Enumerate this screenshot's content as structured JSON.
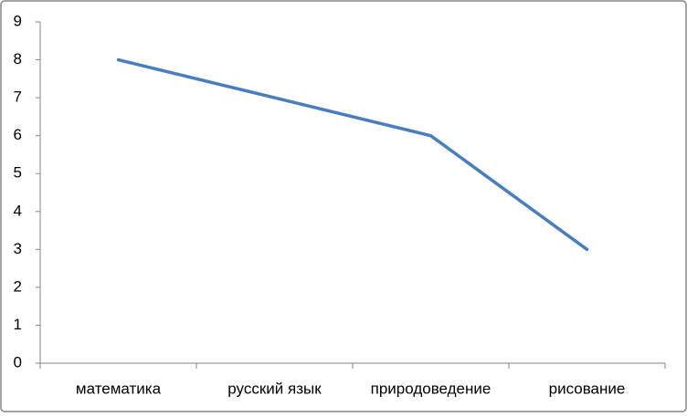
{
  "chart_data": {
    "type": "line",
    "categories": [
      "математика",
      "русский язык",
      "природоведение",
      "рисование"
    ],
    "series": [
      {
        "color": "#4a7ebb",
        "values": [
          8,
          7,
          6,
          3
        ]
      }
    ],
    "ylim": [
      0,
      9
    ],
    "yticks": [
      0,
      1,
      2,
      3,
      4,
      5,
      6,
      7,
      8,
      9
    ],
    "grid": false
  }
}
